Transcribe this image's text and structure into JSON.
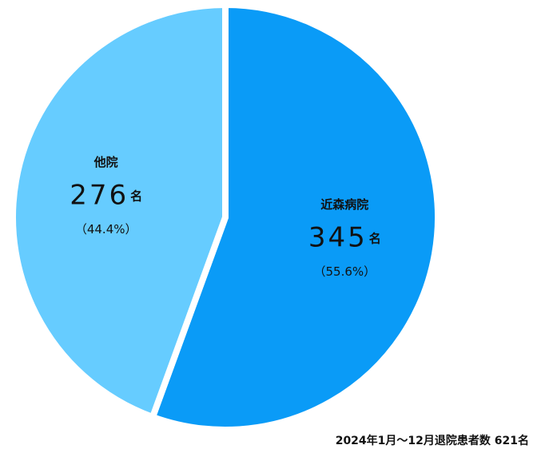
{
  "chart_data": {
    "type": "pie",
    "categories": [
      "近森病院",
      "他院"
    ],
    "values": [
      345,
      276
    ],
    "unit": "名",
    "percent_labels": [
      "（55.6%）",
      "（44.4%）"
    ],
    "colors": [
      "#0a9bf7",
      "#66ccff"
    ],
    "note": "2024年1月～12月退院患者数 621名"
  }
}
